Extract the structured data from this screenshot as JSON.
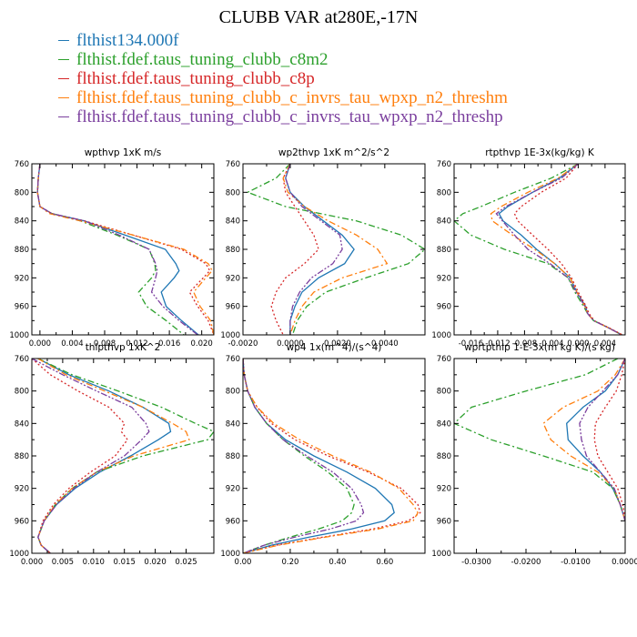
{
  "title": "CLUBB VAR at280E,-17N",
  "legend": [
    {
      "label": "flthist134.000f",
      "color": "#1f77b4"
    },
    {
      "label": "flthist.fdef.taus_tuning_clubb_c8m2",
      "color": "#2ca02c"
    },
    {
      "label": "flthist.fdef.taus_tuning_clubb_c8p",
      "color": "#d62728"
    },
    {
      "label": "flthist.fdef.taus_tuning_clubb_c_invrs_tau_wpxp_n2_threshm",
      "color": "#ff7f0e"
    },
    {
      "label": "flthist.fdef.taus_tuning_clubb_c_invrs_tau_wpxp_n2_threshp",
      "color": "#7b3f9e"
    }
  ],
  "chart_data": [
    {
      "type": "line",
      "title": "wpthvp  1xK m/s",
      "xlim": [
        -0.001,
        0.0215
      ],
      "xticks": [
        0.0,
        0.004,
        0.008,
        0.012,
        0.016,
        0.02
      ],
      "xticklabels": [
        "0.000",
        "0.004",
        "0.008",
        "0.012",
        "0.016",
        "0.020"
      ],
      "ylim": [
        760,
        1000
      ],
      "yticks": [
        760,
        800,
        840,
        880,
        920,
        960,
        1000
      ],
      "y": [
        760,
        780,
        800,
        820,
        830,
        840,
        860,
        880,
        900,
        910,
        920,
        940,
        960,
        980,
        1000
      ],
      "series": [
        {
          "values": [
            0.0,
            -0.0002,
            -0.0003,
            0.0,
            0.0015,
            0.0055,
            0.0105,
            0.0155,
            0.0168,
            0.0172,
            0.0166,
            0.015,
            0.0156,
            0.0175,
            0.0196
          ]
        },
        {
          "values": [
            0.0,
            -0.0002,
            -0.0003,
            0.0,
            0.0015,
            0.005,
            0.0095,
            0.0135,
            0.0142,
            0.0143,
            0.0138,
            0.0122,
            0.0132,
            0.0156,
            0.0178
          ]
        },
        {
          "values": [
            0.0,
            -0.0002,
            -0.0003,
            0.0,
            0.0015,
            0.0055,
            0.0115,
            0.0175,
            0.0205,
            0.021,
            0.0202,
            0.0185,
            0.0195,
            0.0208,
            0.0215
          ]
        },
        {
          "values": [
            0.0,
            -0.0002,
            -0.0003,
            0.0,
            0.0012,
            0.005,
            0.0115,
            0.0178,
            0.0208,
            0.0213,
            0.0205,
            0.019,
            0.0198,
            0.0211,
            0.0215
          ]
        },
        {
          "values": [
            0.0,
            -0.0002,
            -0.0003,
            0.0,
            0.0015,
            0.0055,
            0.0098,
            0.0135,
            0.0143,
            0.0145,
            0.0143,
            0.0138,
            0.0152,
            0.0172,
            0.0195
          ]
        }
      ]
    },
    {
      "type": "line",
      "title": "wp2thvp  1xK m^2/s^2",
      "xlim": [
        -0.002,
        0.0057
      ],
      "xticks": [
        -0.002,
        0.0,
        0.002,
        0.004
      ],
      "xticklabels": [
        "-0.0020",
        "0.0000",
        "0.0020",
        "0.0040"
      ],
      "ylim": [
        760,
        1000
      ],
      "yticks": [
        760,
        800,
        840,
        880,
        920,
        960,
        1000
      ],
      "y": [
        760,
        780,
        800,
        820,
        840,
        860,
        880,
        900,
        920,
        940,
        960,
        980,
        1000
      ],
      "series": [
        {
          "values": [
            0.0,
            -0.0002,
            0.0,
            0.0006,
            0.0014,
            0.0022,
            0.0027,
            0.0023,
            0.0012,
            0.0005,
            0.0002,
            0.0,
            0.0
          ]
        },
        {
          "values": [
            0.0,
            -0.0006,
            -0.0018,
            -0.0002,
            0.0028,
            0.0047,
            0.0057,
            0.005,
            0.0032,
            0.0015,
            0.0007,
            0.0003,
            0.0001
          ]
        },
        {
          "values": [
            0.0,
            -0.0003,
            -0.0002,
            0.0002,
            0.0006,
            0.001,
            0.0012,
            0.0006,
            -0.0002,
            -0.0006,
            -0.0008,
            -0.0006,
            -0.0003
          ]
        },
        {
          "values": [
            0.0,
            -0.0003,
            -0.0001,
            0.0006,
            0.0016,
            0.0028,
            0.0037,
            0.0041,
            0.0022,
            0.001,
            0.0005,
            0.0002,
            0.0
          ]
        },
        {
          "values": [
            0.0,
            -0.0002,
            0.0,
            0.0005,
            0.0013,
            0.0021,
            0.0022,
            0.0018,
            0.0009,
            0.0004,
            0.0001,
            0.0,
            0.0
          ]
        }
      ]
    },
    {
      "type": "line",
      "title": "rtpthvp  1E-3x(kg/kg) K",
      "xlim": [
        -0.0185,
        0.007
      ],
      "xticks": [
        -0.016,
        -0.012,
        -0.008,
        -0.004,
        0.0,
        0.004
      ],
      "xticklabels": [
        "-0.016",
        "-0.012",
        "-0.008",
        "-0.004",
        "0.000",
        "0.004"
      ],
      "ylim": [
        760,
        1000
      ],
      "yticks": [
        760,
        800,
        840,
        880,
        920,
        960,
        1000
      ],
      "y": [
        760,
        780,
        800,
        820,
        830,
        840,
        860,
        880,
        900,
        920,
        940,
        960,
        970,
        980,
        990,
        1000
      ],
      "series": [
        {
          "values": [
            0.0,
            -0.0028,
            -0.0068,
            -0.0105,
            -0.0118,
            -0.0112,
            -0.0085,
            -0.0062,
            -0.0035,
            -0.0012,
            -0.0002,
            0.0011,
            0.0014,
            0.0023,
            0.0045,
            0.0065
          ]
        },
        {
          "values": [
            0.0,
            -0.004,
            -0.0095,
            -0.0145,
            -0.0172,
            -0.0185,
            -0.016,
            -0.011,
            -0.0045,
            -0.0015,
            -0.0005,
            0.0008,
            0.0014,
            0.0023,
            0.0045,
            0.0065
          ]
        },
        {
          "values": [
            0.0,
            -0.0018,
            -0.0055,
            -0.0085,
            -0.0095,
            -0.009,
            -0.0068,
            -0.0045,
            -0.0025,
            -0.001,
            0.0,
            0.0012,
            0.0016,
            0.0024,
            0.0046,
            0.0066
          ]
        },
        {
          "values": [
            0.0,
            -0.003,
            -0.0075,
            -0.0115,
            -0.013,
            -0.0128,
            -0.0098,
            -0.0065,
            -0.0035,
            -0.0012,
            -0.0002,
            0.001,
            0.0014,
            0.0023,
            0.0045,
            0.0065
          ]
        },
        {
          "values": [
            0.0,
            -0.0025,
            -0.0068,
            -0.0108,
            -0.0122,
            -0.0113,
            -0.0095,
            -0.0075,
            -0.0042,
            -0.0015,
            -0.0003,
            0.001,
            0.0014,
            0.0023,
            0.0045,
            0.0065
          ]
        }
      ]
    },
    {
      "type": "line",
      "title": "thlpthvp  1xK^2",
      "xlim": [
        0.0,
        0.0295
      ],
      "xticks": [
        0.0,
        0.005,
        0.01,
        0.015,
        0.02,
        0.025
      ],
      "xticklabels": [
        "0.000",
        "0.005",
        "0.010",
        "0.015",
        "0.020",
        "0.025"
      ],
      "ylim": [
        760,
        1000
      ],
      "yticks": [
        760,
        800,
        840,
        880,
        920,
        960,
        1000
      ],
      "y": [
        760,
        780,
        800,
        820,
        840,
        850,
        860,
        880,
        900,
        920,
        940,
        960,
        980,
        990,
        1000
      ],
      "series": [
        {
          "values": [
            0.001,
            0.006,
            0.0125,
            0.018,
            0.0222,
            0.0225,
            0.0205,
            0.016,
            0.011,
            0.007,
            0.004,
            0.002,
            0.001,
            0.0015,
            0.003
          ]
        },
        {
          "values": [
            0.001,
            0.0065,
            0.014,
            0.021,
            0.0265,
            0.0295,
            0.0285,
            0.018,
            0.0105,
            0.0065,
            0.0038,
            0.002,
            0.001,
            0.0015,
            0.003
          ]
        },
        {
          "values": [
            0.0,
            0.003,
            0.0075,
            0.0125,
            0.015,
            0.0145,
            0.0155,
            0.0135,
            0.0095,
            0.006,
            0.0035,
            0.0018,
            0.001,
            0.0015,
            0.003
          ]
        },
        {
          "values": [
            0.001,
            0.0055,
            0.0118,
            0.018,
            0.0228,
            0.025,
            0.0255,
            0.0165,
            0.0105,
            0.0065,
            0.0038,
            0.002,
            0.001,
            0.0015,
            0.003
          ]
        },
        {
          "values": [
            0.0,
            0.005,
            0.0105,
            0.0162,
            0.0185,
            0.019,
            0.0178,
            0.015,
            0.0105,
            0.0068,
            0.004,
            0.002,
            0.001,
            0.0015,
            0.003
          ]
        }
      ]
    },
    {
      "type": "line",
      "title": "wp4  1x(m^4)/(s^4)",
      "xlim": [
        0.0,
        0.77
      ],
      "xticks": [
        0.0,
        0.2,
        0.4,
        0.6
      ],
      "xticklabels": [
        "0.00",
        "0.20",
        "0.40",
        "0.60"
      ],
      "ylim": [
        760,
        1000
      ],
      "yticks": [
        760,
        800,
        840,
        880,
        920,
        960,
        1000
      ],
      "y": [
        760,
        780,
        800,
        820,
        840,
        860,
        880,
        900,
        920,
        940,
        950,
        960,
        970,
        980,
        990,
        1000
      ],
      "series": [
        {
          "values": [
            0.0,
            0.005,
            0.02,
            0.05,
            0.1,
            0.18,
            0.3,
            0.44,
            0.56,
            0.63,
            0.64,
            0.6,
            0.46,
            0.28,
            0.12,
            0.0
          ]
        },
        {
          "values": [
            0.0,
            0.005,
            0.02,
            0.05,
            0.1,
            0.17,
            0.26,
            0.36,
            0.44,
            0.47,
            0.46,
            0.42,
            0.32,
            0.2,
            0.09,
            0.0
          ]
        },
        {
          "values": [
            0.0,
            0.005,
            0.02,
            0.06,
            0.12,
            0.22,
            0.36,
            0.53,
            0.67,
            0.74,
            0.75,
            0.7,
            0.55,
            0.34,
            0.14,
            0.0
          ]
        },
        {
          "values": [
            0.0,
            0.005,
            0.02,
            0.06,
            0.13,
            0.24,
            0.38,
            0.54,
            0.66,
            0.72,
            0.74,
            0.72,
            0.57,
            0.35,
            0.15,
            0.0
          ]
        },
        {
          "values": [
            0.0,
            0.005,
            0.02,
            0.05,
            0.1,
            0.17,
            0.27,
            0.38,
            0.46,
            0.5,
            0.51,
            0.48,
            0.37,
            0.22,
            0.09,
            0.0
          ]
        }
      ]
    },
    {
      "type": "line",
      "title": "wprtpthlp  1-E-3x(m kg K)/(s kg)",
      "xlim": [
        -0.0345,
        0.0
      ],
      "xticks": [
        -0.03,
        -0.02,
        -0.01,
        0.0
      ],
      "xticklabels": [
        "-0.0300",
        "-0.0200",
        "-0.0100",
        "0.0000"
      ],
      "ylim": [
        760,
        1000
      ],
      "yticks": [
        760,
        800,
        840,
        880,
        920,
        960,
        1000
      ],
      "y": [
        760,
        780,
        800,
        820,
        840,
        860,
        880,
        900,
        920,
        940,
        950,
        960
      ],
      "series": [
        {
          "values": [
            0.0,
            -0.0015,
            -0.004,
            -0.0085,
            -0.0118,
            -0.0115,
            -0.0085,
            -0.005,
            -0.0025,
            -0.001,
            -0.0005,
            0.0
          ]
        },
        {
          "values": [
            -0.0015,
            -0.008,
            -0.02,
            -0.031,
            -0.0345,
            -0.027,
            -0.0165,
            -0.0065,
            -0.0025,
            -0.001,
            -0.0005,
            0.0
          ]
        },
        {
          "values": [
            0.0,
            -0.0007,
            -0.0018,
            -0.004,
            -0.006,
            -0.0062,
            -0.0055,
            -0.0035,
            -0.0015,
            -0.0005,
            -0.0002,
            0.0
          ]
        },
        {
          "values": [
            0.0,
            -0.002,
            -0.0055,
            -0.0125,
            -0.0165,
            -0.015,
            -0.011,
            -0.0055,
            -0.0022,
            -0.001,
            -0.0005,
            0.0
          ]
        },
        {
          "values": [
            0.0,
            -0.0015,
            -0.0045,
            -0.0075,
            -0.0092,
            -0.0088,
            -0.0078,
            -0.005,
            -0.0022,
            -0.001,
            -0.0005,
            0.0
          ]
        }
      ]
    }
  ]
}
